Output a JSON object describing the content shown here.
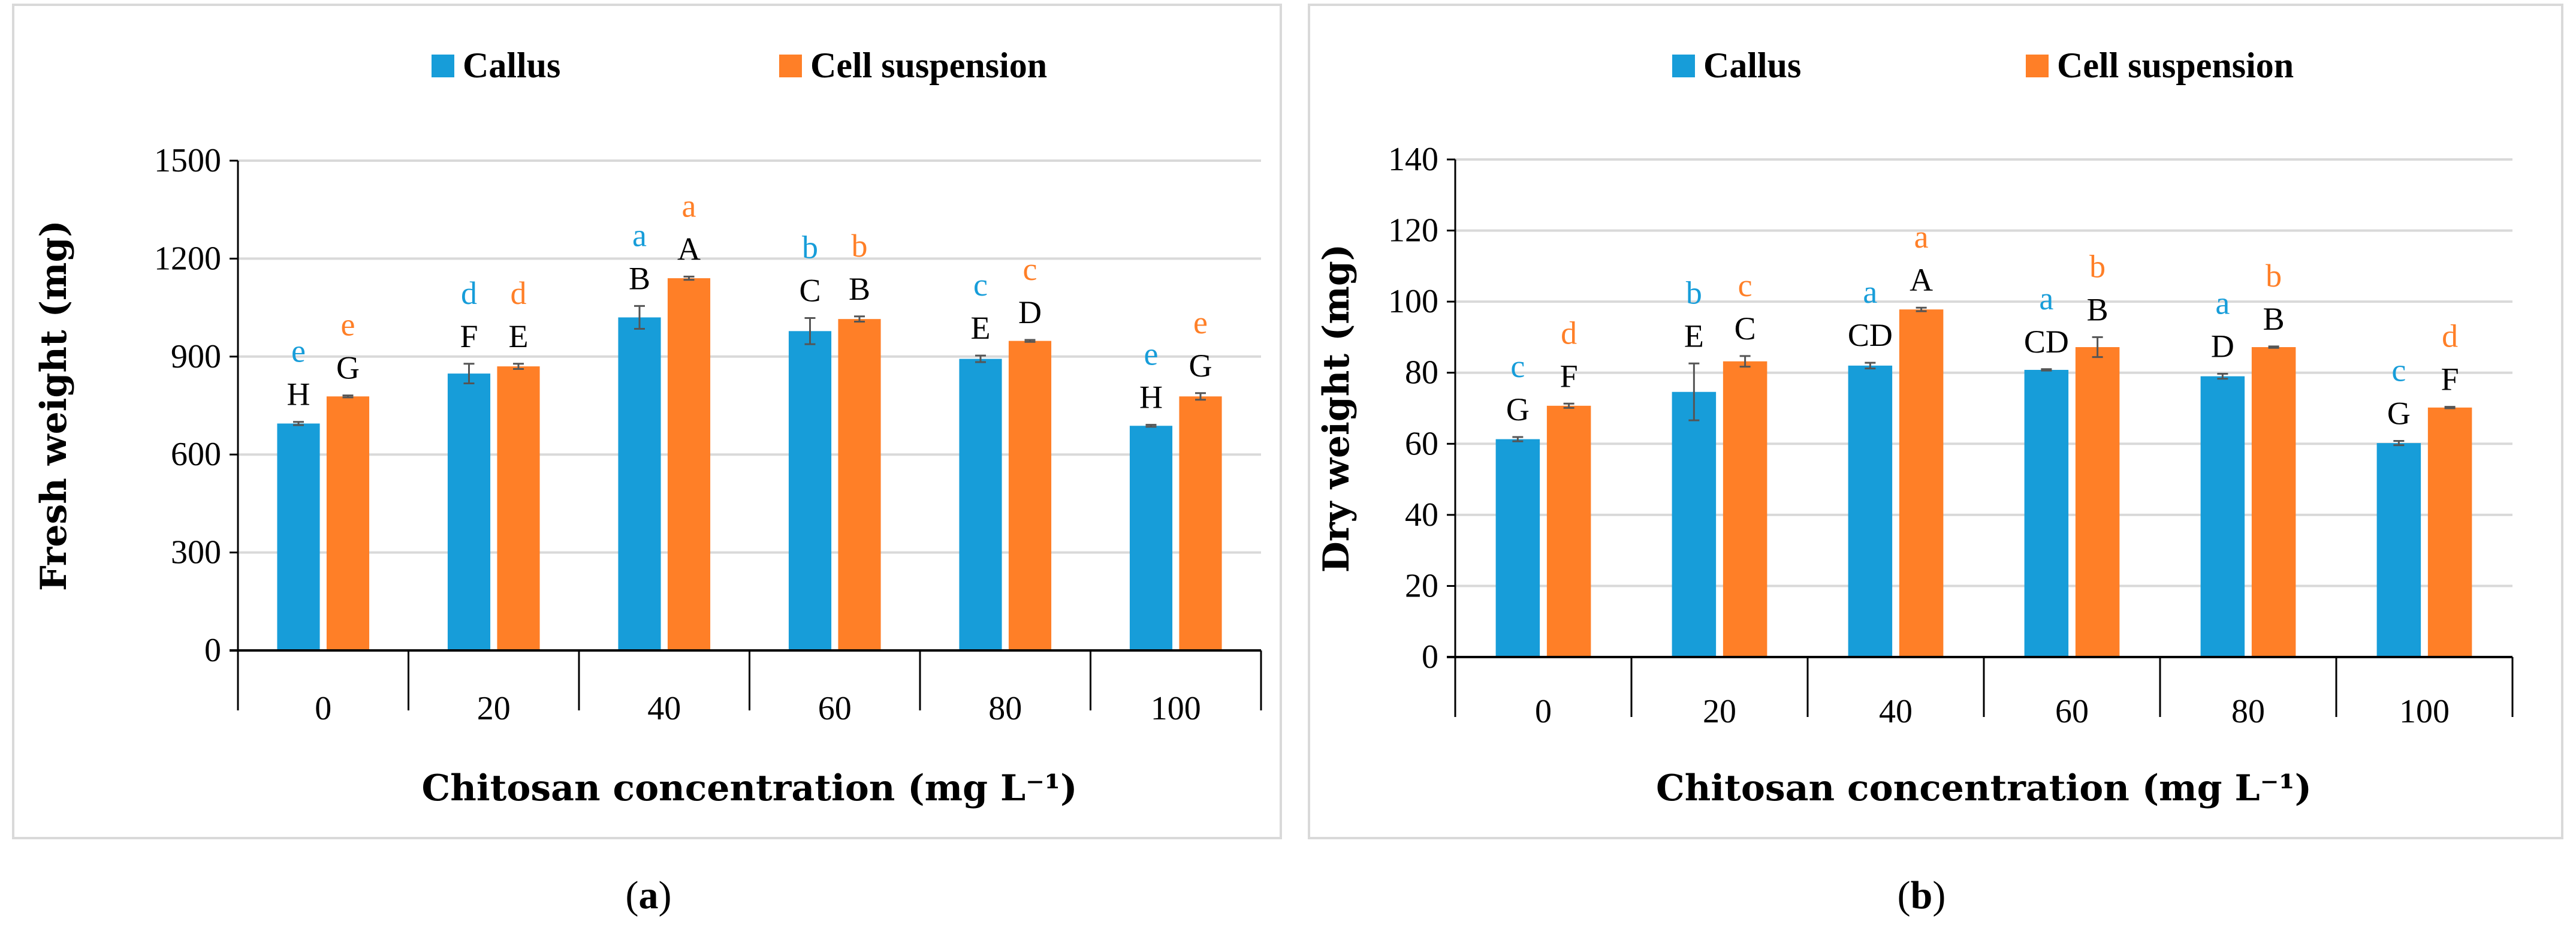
{
  "colors": {
    "callus": "#179DD9",
    "suspension": "#FF7F27",
    "grid": "#d9d9d9",
    "frame": "#d9d9d9"
  },
  "chart_data": [
    {
      "type": "bar",
      "caption_pre": "(",
      "caption": "a",
      "caption_post": ")",
      "title": "",
      "xlabel": "Chitosan concentration (mg L⁻¹)",
      "ylabel": "Fresh weight (mg)",
      "ylim": [
        0,
        1500
      ],
      "yticks": [
        0,
        300,
        600,
        900,
        1200,
        1500
      ],
      "categories": [
        "0",
        "20",
        "40",
        "60",
        "80",
        "100"
      ],
      "legend": "top",
      "grid": true,
      "series": [
        {
          "name": "Callus",
          "values": [
            695,
            848,
            1020,
            978,
            893,
            688
          ],
          "errors": [
            5,
            30,
            35,
            40,
            10,
            3
          ],
          "upper_letters": [
            "H",
            "F",
            "B",
            "C",
            "E",
            "H"
          ],
          "lower_letters": [
            "e",
            "d",
            "a",
            "b",
            "c",
            "e"
          ]
        },
        {
          "name": "Cell suspension",
          "values": [
            778,
            870,
            1140,
            1015,
            948,
            778
          ],
          "errors": [
            3,
            8,
            5,
            8,
            3,
            10
          ],
          "upper_letters": [
            "G",
            "E",
            "A",
            "B",
            "D",
            "G"
          ],
          "lower_letters": [
            "e",
            "d",
            "a",
            "b",
            "c",
            "e"
          ]
        }
      ]
    },
    {
      "type": "bar",
      "caption_pre": "(",
      "caption": "b",
      "caption_post": ")",
      "title": "",
      "xlabel": "Chitosan concentration (mg L⁻¹)",
      "ylabel": "Dry weight (mg)",
      "ylim": [
        0,
        140
      ],
      "yticks": [
        0,
        20,
        40,
        60,
        80,
        100,
        120,
        140
      ],
      "categories": [
        "0",
        "20",
        "40",
        "60",
        "80",
        "100"
      ],
      "legend": "top",
      "grid": true,
      "series": [
        {
          "name": "Callus",
          "values": [
            61.3,
            74.6,
            82.0,
            80.8,
            79.0,
            60.2
          ],
          "errors": [
            0.6,
            8.0,
            0.8,
            0.2,
            0.7,
            0.6
          ],
          "upper_letters": [
            "G",
            "E",
            "CD",
            "CD",
            "D",
            "G"
          ],
          "lower_letters": [
            "c",
            "b",
            "a",
            "a",
            "a",
            "c"
          ]
        },
        {
          "name": "Cell suspension",
          "values": [
            70.7,
            83.2,
            97.8,
            87.2,
            87.2,
            70.2
          ],
          "errors": [
            0.6,
            1.5,
            0.5,
            2.8,
            0.2,
            0.2
          ],
          "upper_letters": [
            "F",
            "C",
            "A",
            "B",
            "B",
            "F"
          ],
          "lower_letters": [
            "d",
            "c",
            "a",
            "b",
            "b",
            "d"
          ]
        }
      ]
    }
  ]
}
